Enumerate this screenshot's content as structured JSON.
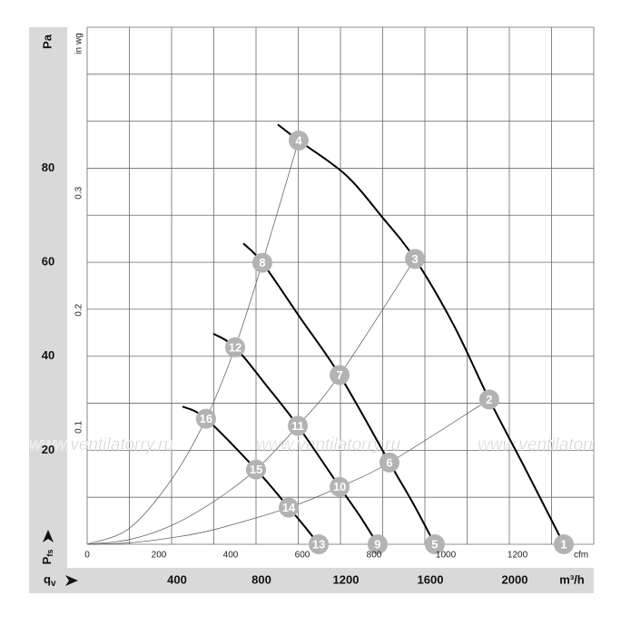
{
  "chart_data": {
    "type": "line",
    "y_label": "Pa",
    "y2_label": "in wg",
    "x2_label": "cfm",
    "x_unit": "m³/h",
    "y_symbol": {
      "main": "P",
      "sub": "fs"
    },
    "x_symbol": {
      "main": "q",
      "sub": "v"
    },
    "watermark": "www.ventilatorry.ru",
    "xlim": [
      0,
      2400
    ],
    "ylim": [
      0,
      110
    ],
    "x2lim": [
      0,
      1412.6
    ],
    "y2lim": [
      0,
      0.4416
    ],
    "xticks": [
      400,
      800,
      1200,
      1600,
      2000
    ],
    "yticks": [
      20,
      40,
      60,
      80
    ],
    "x2ticks": [
      0,
      200,
      400,
      600,
      800,
      1000,
      1200
    ],
    "y2ticks": [
      0.1,
      0.2,
      0.3
    ],
    "xgrid": [
      0,
      200,
      400,
      600,
      800,
      1000,
      1200,
      1400,
      1600,
      1800,
      2000,
      2200,
      2400
    ],
    "ygrid": [
      0,
      10,
      20,
      30,
      40,
      50,
      60,
      70,
      80,
      90,
      100,
      110
    ],
    "grid": true,
    "series": [
      {
        "color": "#000000",
        "width": 2,
        "x": [
          903,
          1002,
          1222,
          1394,
          1553,
          1738,
          1905,
          2082,
          2258
        ],
        "values": [
          89.3,
          85.9,
          78.7,
          69.8,
          60.7,
          46.5,
          30.8,
          15.5,
          0
        ]
      },
      {
        "color": "#000000",
        "width": 2,
        "x": [
          740,
          830,
          1006,
          1196,
          1432,
          1544,
          1647
        ],
        "values": [
          64.0,
          59.9,
          48.4,
          36.0,
          17.4,
          8.7,
          0
        ]
      },
      {
        "color": "#000000",
        "width": 2,
        "x": [
          598,
          701,
          847,
          998,
          1196,
          1295,
          1376
        ],
        "values": [
          44.8,
          41.9,
          33.9,
          25.2,
          12.2,
          5.8,
          0
        ]
      },
      {
        "color": "#000000",
        "width": 2,
        "x": [
          452,
          563,
          800,
          955,
          1030,
          1097
        ],
        "values": [
          29.3,
          26.7,
          15.9,
          7.8,
          3.8,
          0
        ]
      },
      {
        "color": "#666666",
        "width": 0.8,
        "x": [
          0,
          200,
          400,
          563,
          701,
          830,
          1002
        ],
        "values": [
          0,
          3.4,
          13.8,
          26.7,
          41.9,
          59.9,
          85.9
        ]
      },
      {
        "color": "#666666",
        "width": 0.8,
        "x": [
          0,
          200,
          400,
          600,
          800,
          998,
          1196,
          1553
        ],
        "values": [
          0,
          1.0,
          4.0,
          9.1,
          15.9,
          25.2,
          36.0,
          60.7
        ]
      },
      {
        "color": "#666666",
        "width": 0.8,
        "x": [
          0,
          200,
          400,
          600,
          955,
          1196,
          1432,
          1905
        ],
        "values": [
          0,
          0.3,
          1.4,
          3.1,
          7.8,
          12.2,
          17.4,
          30.8
        ]
      }
    ],
    "points": [
      {
        "label": "1",
        "x": 2258,
        "y": 0
      },
      {
        "label": "2",
        "x": 1905,
        "y": 30.8
      },
      {
        "label": "3",
        "x": 1553,
        "y": 60.7
      },
      {
        "label": "4",
        "x": 1002,
        "y": 85.9
      },
      {
        "label": "5",
        "x": 1647,
        "y": 0
      },
      {
        "label": "6",
        "x": 1432,
        "y": 17.4
      },
      {
        "label": "7",
        "x": 1196,
        "y": 36.0
      },
      {
        "label": "8",
        "x": 830,
        "y": 59.9
      },
      {
        "label": "9",
        "x": 1376,
        "y": 0
      },
      {
        "label": "10",
        "x": 1196,
        "y": 12.2
      },
      {
        "label": "11",
        "x": 998,
        "y": 25.2
      },
      {
        "label": "12",
        "x": 701,
        "y": 41.9
      },
      {
        "label": "13",
        "x": 1097,
        "y": 0
      },
      {
        "label": "14",
        "x": 955,
        "y": 7.8
      },
      {
        "label": "15",
        "x": 800,
        "y": 15.9
      },
      {
        "label": "16",
        "x": 563,
        "y": 26.7
      }
    ],
    "point_color": "#b3b3b3"
  }
}
